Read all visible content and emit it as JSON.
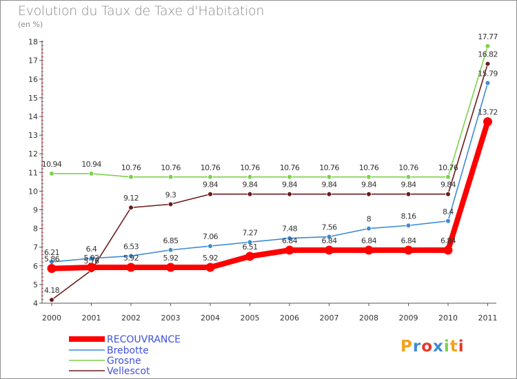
{
  "header": {
    "title": "Evolution du Taux de Taxe d'Habitation",
    "unit": "(en %)"
  },
  "chart_data": {
    "type": "line",
    "x": [
      "2000",
      "2001",
      "2002",
      "2003",
      "2004",
      "2005",
      "2006",
      "2007",
      "2008",
      "2009",
      "2010",
      "2011"
    ],
    "ylim": [
      4,
      18
    ],
    "yticks": [
      "4",
      "5",
      "6",
      "7",
      "8",
      "9",
      "10",
      "11",
      "12",
      "13",
      "14",
      "15",
      "16",
      "17",
      "18"
    ],
    "grid": "none",
    "legend_position": "bottom-left",
    "series": [
      {
        "name": "RECOUVRANCE",
        "color": "#ff0000",
        "values": [
          5.86,
          5.92,
          5.92,
          5.92,
          5.92,
          6.51,
          6.84,
          6.84,
          6.84,
          6.84,
          6.84,
          13.72
        ],
        "labels": [
          "5.86",
          "5.92",
          "5.92",
          "5.92",
          "5.92",
          "6.51",
          "6.84",
          "6.84",
          "6.84",
          "6.84",
          "6.84",
          "13.72"
        ]
      },
      {
        "name": "Brebotte",
        "color": "#3c8ad6",
        "values": [
          6.21,
          6.4,
          6.53,
          6.85,
          7.06,
          7.27,
          7.48,
          7.56,
          8.0,
          8.16,
          8.4,
          15.79
        ],
        "labels": [
          "6.21",
          "6.4",
          "6.53",
          "6.85",
          "7.06",
          "7.27",
          "7.48",
          "7.56",
          "8",
          "8.16",
          "8.4",
          "15.79"
        ]
      },
      {
        "name": "Grosne",
        "color": "#7dd14a",
        "values": [
          10.94,
          10.94,
          10.76,
          10.76,
          10.76,
          10.76,
          10.76,
          10.76,
          10.76,
          10.76,
          10.76,
          17.77
        ],
        "labels": [
          "10.94",
          "10.94",
          "10.76",
          "10.76",
          "10.76",
          "10.76",
          "10.76",
          "10.76",
          "10.76",
          "10.76",
          "10.76",
          "17.77"
        ]
      },
      {
        "name": "Vellescot",
        "color": "#6b1a1a",
        "values": [
          4.18,
          5.76,
          9.12,
          9.3,
          9.84,
          9.84,
          9.84,
          9.84,
          9.84,
          9.84,
          9.84,
          16.82
        ],
        "labels": [
          "4.18",
          "5.76",
          "9.12",
          "9.3",
          "9.84",
          "9.84",
          "9.84",
          "9.84",
          "9.84",
          "9.84",
          "9.84",
          "16.82"
        ]
      }
    ]
  },
  "logo": {
    "text": "Proxiti",
    "letters": [
      "P",
      "r",
      "o",
      "x",
      "i",
      "t",
      "i"
    ],
    "colors": [
      "#f4a21c",
      "#3c8ad6",
      "#e8372b",
      "#3c8ad6",
      "#7dd14a",
      "#f4a21c",
      "#e8372b"
    ]
  }
}
